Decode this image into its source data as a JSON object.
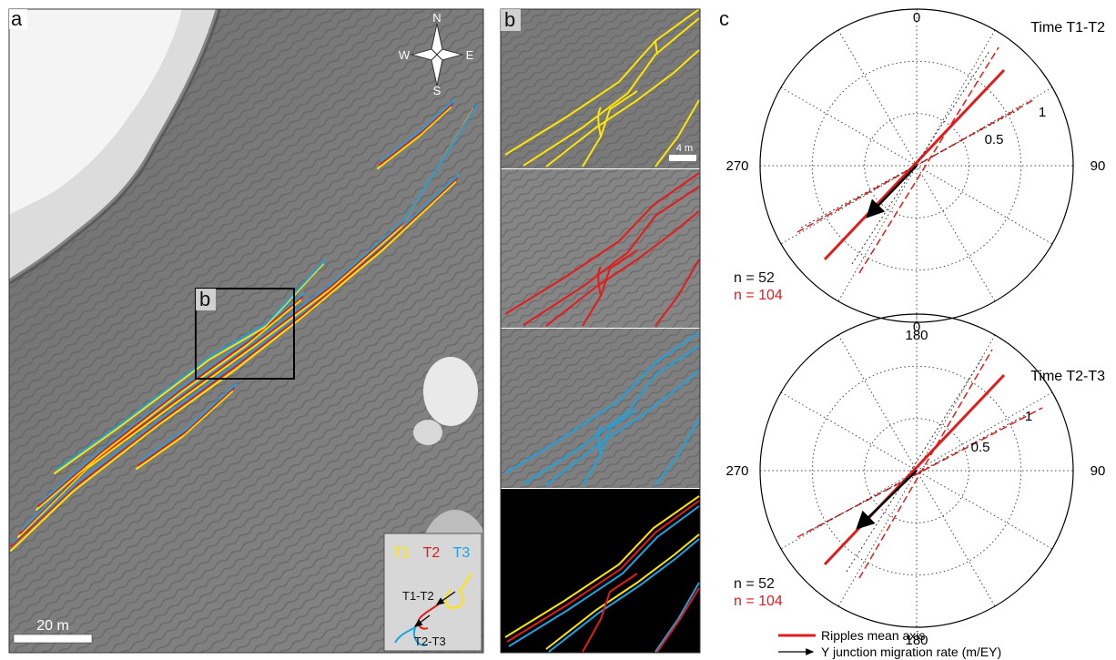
{
  "panel_a": {
    "letter": "a",
    "inset_letter": "b",
    "compass": {
      "n": "N",
      "s": "S",
      "e": "E",
      "w": "W"
    },
    "scale_label": "20 m",
    "legend": {
      "t1": "T1",
      "t2": "T2",
      "t3": "T3",
      "arrow1": "T1-T2",
      "arrow2": "T2-T3"
    }
  },
  "panel_b": {
    "letter": "b",
    "scale_label": "4 m"
  },
  "panel_c": {
    "letter": "c",
    "top": {
      "title": "Time T1-T2",
      "label_0": "0",
      "label_90": "90",
      "label_180": "180",
      "label_270": "270",
      "r_outer": "1",
      "r_inner": "0.5",
      "n_black": "n = 52",
      "n_red": "n = 104"
    },
    "bottom": {
      "title": "Time T2-T3",
      "label_0": "0",
      "label_90": "90",
      "label_180": "180",
      "label_270": "270",
      "r_outer": "1",
      "r_inner": "0.5",
      "n_black": "n = 52",
      "n_red": "n = 104"
    },
    "legend": {
      "ripples": "Ripples mean axis",
      "junction": "Y junction migration rate (m/EY)"
    }
  },
  "colors": {
    "t1": "#ffe600",
    "t2": "#e31b1b",
    "t3": "#1ca3e0",
    "axis_red": "#e31b1b",
    "arrow": "#000000"
  }
}
